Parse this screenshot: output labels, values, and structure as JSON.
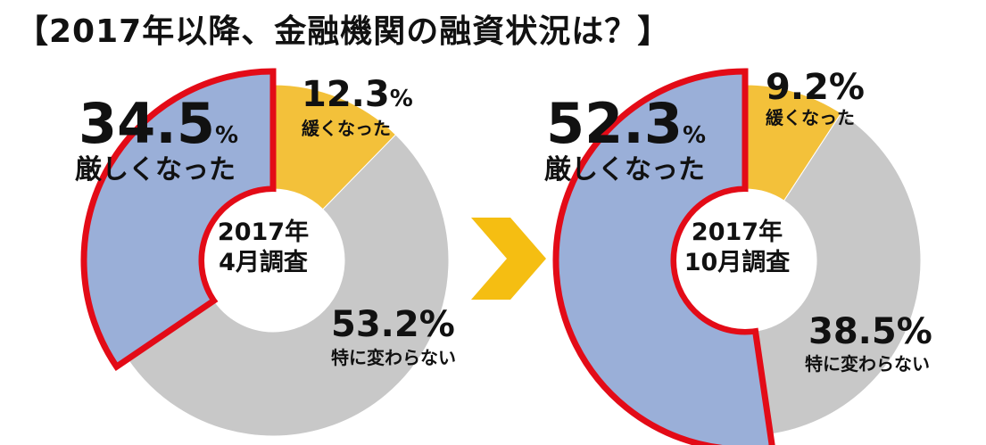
{
  "title": "【2017年以降、金融機関の融資状況は？】",
  "colors": {
    "strict": "#9AAFD8",
    "loose": "#F3C13A",
    "same": "#C8C8C8",
    "highlight": "#E30B17",
    "arrow": "#F5BE12"
  },
  "chart_data": [
    {
      "type": "pie",
      "center_label": [
        "2017年",
        "4月調査"
      ],
      "slices": [
        {
          "label": "緩くなった",
          "value": 12.3
        },
        {
          "label": "特に変わらない",
          "value": 53.2
        },
        {
          "label": "厳しくなった",
          "value": 34.5
        }
      ],
      "value_text": {
        "loose": "12.3",
        "same": "53.2%",
        "strict": "34.5"
      }
    },
    {
      "type": "pie",
      "center_label": [
        "2017年",
        "10月調査"
      ],
      "slices": [
        {
          "label": "緩くなった",
          "value": 9.2
        },
        {
          "label": "特に変わらない",
          "value": 38.5
        },
        {
          "label": "厳しくなった",
          "value": 52.3
        }
      ],
      "value_text": {
        "loose": "9.2%",
        "same": "38.5%",
        "strict": "52.3"
      }
    }
  ],
  "percent_sign": "%"
}
